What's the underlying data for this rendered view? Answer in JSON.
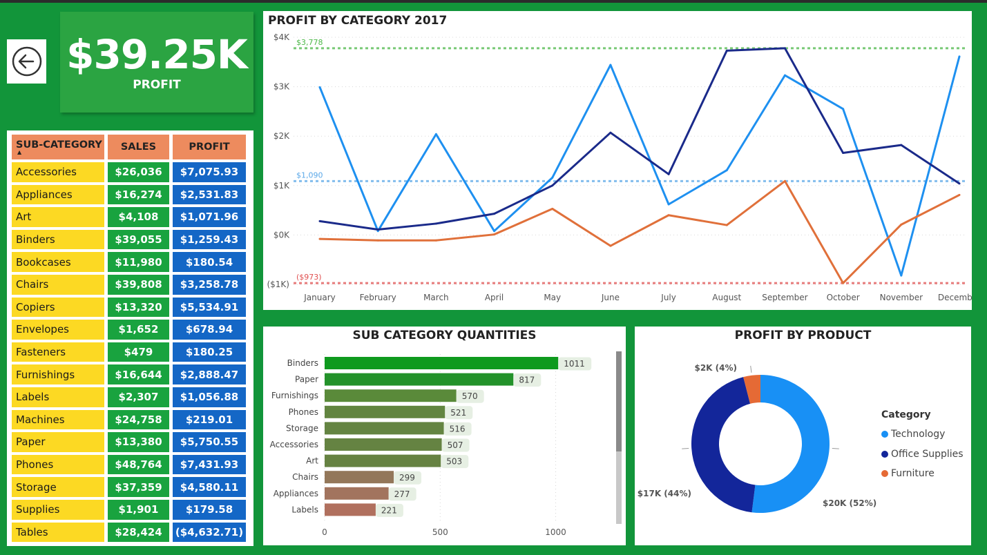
{
  "kpi": {
    "value": "$39.25K",
    "label": "PROFIT"
  },
  "back_button": {
    "icon": "arrow-left-circle-icon"
  },
  "table": {
    "headers": [
      "SUB-CATEGORY",
      "SALES",
      "PROFIT"
    ],
    "sort_indicator": "▲",
    "rows": [
      [
        "Accessories",
        "$26,036",
        "$7,075.93"
      ],
      [
        "Appliances",
        "$16,274",
        "$2,531.83"
      ],
      [
        "Art",
        "$4,108",
        "$1,071.96"
      ],
      [
        "Binders",
        "$39,055",
        "$1,259.43"
      ],
      [
        "Bookcases",
        "$11,980",
        "$180.54"
      ],
      [
        "Chairs",
        "$39,808",
        "$3,258.78"
      ],
      [
        "Copiers",
        "$13,320",
        "$5,534.91"
      ],
      [
        "Envelopes",
        "$1,652",
        "$678.94"
      ],
      [
        "Fasteners",
        "$479",
        "$180.25"
      ],
      [
        "Furnishings",
        "$16,644",
        "$2,888.47"
      ],
      [
        "Labels",
        "$2,307",
        "$1,056.88"
      ],
      [
        "Machines",
        "$24,758",
        "$219.01"
      ],
      [
        "Paper",
        "$13,380",
        "$5,750.55"
      ],
      [
        "Phones",
        "$48,764",
        "$7,431.93"
      ],
      [
        "Storage",
        "$37,359",
        "$4,580.11"
      ],
      [
        "Supplies",
        "$1,901",
        "$179.58"
      ],
      [
        "Tables",
        "$28,424",
        "($4,632.71)"
      ]
    ]
  },
  "chart_data": [
    {
      "type": "line",
      "title": "PROFIT BY CATEGORY 2017",
      "categories": [
        "January",
        "February",
        "March",
        "April",
        "May",
        "June",
        "July",
        "August",
        "September",
        "October",
        "November",
        "December"
      ],
      "ylim": [
        -1000,
        4000
      ],
      "yticks": [
        -1000,
        0,
        1000,
        2000,
        3000,
        4000
      ],
      "ytick_labels": [
        "($1K)",
        "$0K",
        "$1K",
        "$2K",
        "$3K",
        "$4K"
      ],
      "series": [
        {
          "name": "Technology",
          "color": "#1e90f0",
          "values": [
            2990,
            80,
            2040,
            80,
            1160,
            3440,
            620,
            1310,
            3230,
            2550,
            -820,
            3610
          ]
        },
        {
          "name": "Office Supplies",
          "color": "#1a2a8a",
          "values": [
            280,
            110,
            230,
            430,
            1000,
            2070,
            1230,
            3730,
            3778,
            1660,
            1820,
            1040
          ]
        },
        {
          "name": "Furniture",
          "color": "#e0703a",
          "values": [
            -80,
            -110,
            -110,
            10,
            530,
            -220,
            400,
            200,
            1090,
            -973,
            210,
            810
          ]
        }
      ],
      "reference_lines": [
        {
          "label": "$3,778",
          "value": 3778,
          "color": "#4cb848"
        },
        {
          "label": "$1,090",
          "value": 1090,
          "color": "#5aa8e8"
        },
        {
          "label": "($973)",
          "value": -973,
          "color": "#e05050"
        }
      ]
    },
    {
      "type": "bar",
      "title": "SUB CATEGORY QUANTITIES",
      "orientation": "horizontal",
      "categories": [
        "Binders",
        "Paper",
        "Furnishings",
        "Phones",
        "Storage",
        "Accessories",
        "Art",
        "Chairs",
        "Appliances",
        "Labels"
      ],
      "values": [
        1011,
        817,
        570,
        521,
        516,
        507,
        503,
        299,
        277,
        221
      ],
      "value_labels": [
        "1011",
        "817",
        "570",
        "521",
        "516",
        "507",
        "503",
        "299",
        "277",
        "221"
      ],
      "colors": [
        "#0e9a1e",
        "#23922a",
        "#5a8a3a",
        "#628540",
        "#648442",
        "#658342",
        "#668242",
        "#93775a",
        "#a2745e",
        "#b0705e"
      ],
      "xlim": [
        0,
        1100
      ],
      "xticks": [
        0,
        500,
        1000
      ],
      "xtick_labels": [
        "0",
        "500",
        "1000"
      ]
    },
    {
      "type": "pie",
      "title": "PROFIT BY PRODUCT",
      "donut": true,
      "legend_title": "Category",
      "categories": [
        "Technology",
        "Office Supplies",
        "Furniture"
      ],
      "values": [
        52,
        44,
        4
      ],
      "colors": [
        "#1890f5",
        "#13269a",
        "#e56a35"
      ],
      "slice_labels": [
        "$20K (52%)",
        "$17K (44%)",
        "$2K (4%)"
      ]
    }
  ]
}
